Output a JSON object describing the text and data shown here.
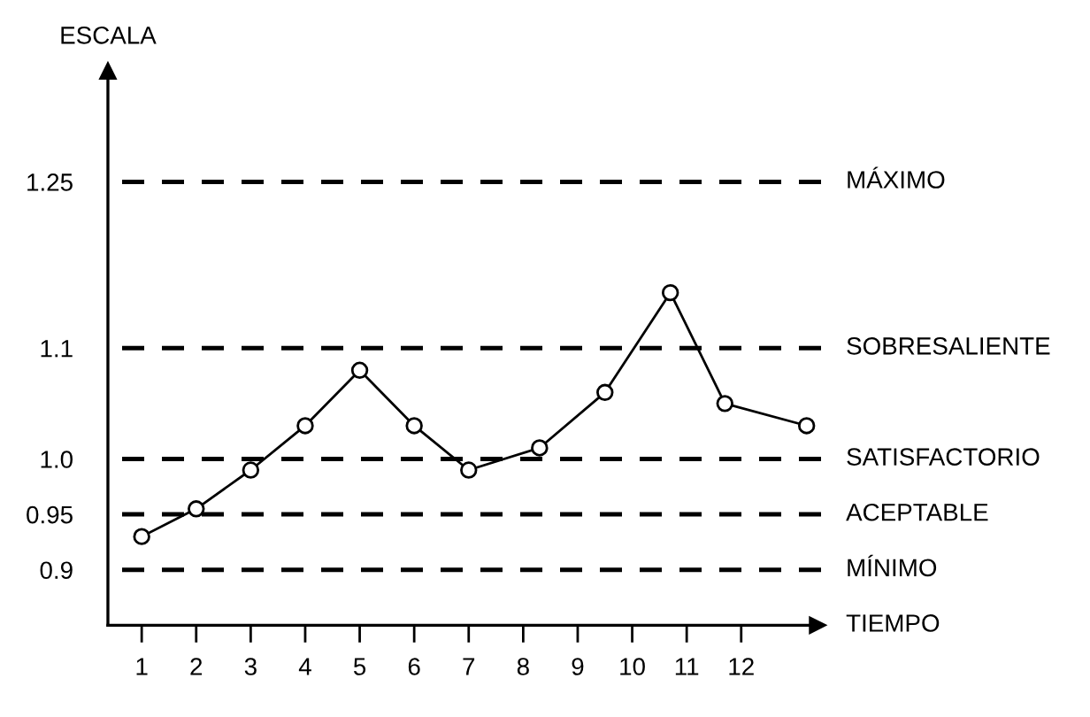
{
  "chart_data": {
    "type": "line",
    "xlabel": "TIEMPO",
    "ylabel": "ESCALA",
    "x": [
      1,
      2,
      3,
      4,
      5,
      6,
      7,
      8.3,
      9.5,
      10.7,
      11.7,
      13.2
    ],
    "series": [
      {
        "color": "#000000",
        "values": [
          0.93,
          0.955,
          0.99,
          1.03,
          1.08,
          1.03,
          0.99,
          1.01,
          1.06,
          1.15,
          1.05,
          1.03
        ]
      }
    ],
    "marker": "circle",
    "line_style": "solid",
    "grid": false,
    "legend": false,
    "xlim": [
      0.38,
      13.4
    ],
    "xticks": [
      1,
      2,
      3,
      4,
      5,
      6,
      7,
      8,
      9,
      10,
      11,
      12
    ],
    "ylim": [
      0.85,
      1.35
    ],
    "yticks": [
      0.9,
      0.95,
      {
        "value": 1.0,
        "label": "1.0"
      },
      1.1,
      1.25
    ],
    "ref_lines": [
      {
        "axis": "y",
        "value": 1.25,
        "label": "MÁXIMO",
        "color": "#000000",
        "line_style": "dashed"
      },
      {
        "axis": "y",
        "value": 1.1,
        "label": "SOBRESALIENTE",
        "color": "#000000",
        "line_style": "dashed"
      },
      {
        "axis": "y",
        "value": 1.0,
        "label": "SATISFACTORIO",
        "color": "#000000",
        "line_style": "dashed"
      },
      {
        "axis": "y",
        "value": 0.95,
        "label": "ACEPTABLE",
        "color": "#000000",
        "line_style": "dashed"
      },
      {
        "axis": "y",
        "value": 0.9,
        "label": "MÍNIMO",
        "color": "#000000",
        "line_style": "dashed"
      }
    ]
  }
}
